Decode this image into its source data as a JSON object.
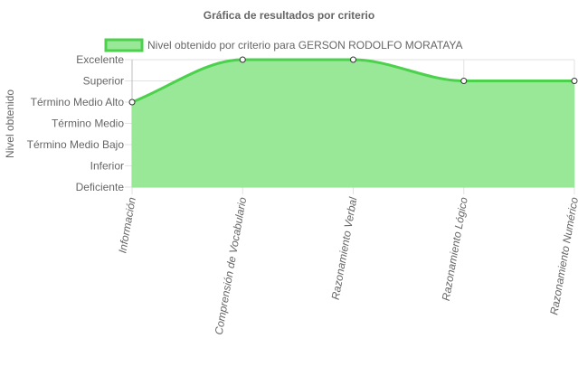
{
  "chart_data": {
    "type": "area",
    "title": "Gráfica de resultados por criterio",
    "ylabel": "Nivel obtenido",
    "xlabel": "",
    "categories": [
      "Información",
      "Comprensión de Vocabulario",
      "Razonamiento Verbal",
      "Razonamiento Lógico",
      "Razonamiento Numérico"
    ],
    "y_levels": [
      "Deficiente",
      "Inferior",
      "Término Medio Bajo",
      "Término Medio",
      "Término Medio Alto",
      "Superior",
      "Excelente"
    ],
    "ylim": [
      0,
      6
    ],
    "series": [
      {
        "name": "Nivel obtenido por criterio para GERSON RODOLFO MORATAYA",
        "values": [
          4,
          6,
          6,
          5,
          5
        ],
        "value_labels": [
          "Término Medio Alto",
          "Excelente",
          "Excelente",
          "Superior",
          "Superior"
        ]
      }
    ],
    "legend_position": "top",
    "grid": true,
    "colors": {
      "fill": "#98e898",
      "line": "#4bd14b",
      "grid": "#e2e2e2",
      "text": "#666666"
    }
  }
}
